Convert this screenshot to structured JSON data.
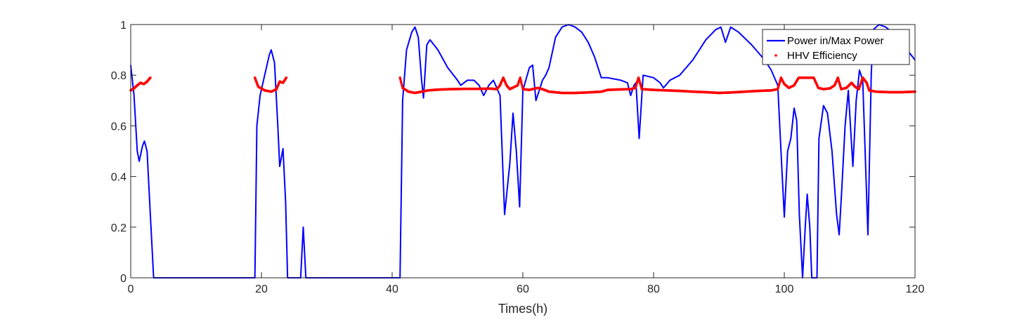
{
  "chart_data": {
    "type": "line",
    "title": "",
    "xlabel": "Times(h)",
    "ylabel": "",
    "xlim": [
      0,
      120
    ],
    "ylim": [
      0,
      1
    ],
    "xticks": [
      "0",
      "20",
      "40",
      "60",
      "80",
      "100",
      "120"
    ],
    "yticks": [
      "0",
      "0.2",
      "0.4",
      "0.6",
      "0.8",
      "1"
    ],
    "grid": false,
    "legend_position": "top-right",
    "series": [
      {
        "name": "Power in/Max Power",
        "style": "line",
        "color": "#0000ff",
        "points": [
          [
            0,
            0.84
          ],
          [
            0.5,
            0.72
          ],
          [
            1,
            0.5
          ],
          [
            1.3,
            0.46
          ],
          [
            1.8,
            0.52
          ],
          [
            2.1,
            0.54
          ],
          [
            2.5,
            0.5
          ],
          [
            3,
            0.25
          ],
          [
            3.5,
            0
          ],
          [
            19,
            0
          ],
          [
            19.3,
            0.6
          ],
          [
            19.8,
            0.72
          ],
          [
            20.5,
            0.8
          ],
          [
            21.2,
            0.88
          ],
          [
            21.5,
            0.9
          ],
          [
            22,
            0.85
          ],
          [
            22.5,
            0.6
          ],
          [
            22.8,
            0.44
          ],
          [
            23.3,
            0.51
          ],
          [
            23.7,
            0.3
          ],
          [
            24,
            0
          ],
          [
            26,
            0
          ],
          [
            26.4,
            0.2
          ],
          [
            26.8,
            0
          ],
          [
            41.2,
            0
          ],
          [
            41.6,
            0.7
          ],
          [
            42.2,
            0.9
          ],
          [
            43,
            0.97
          ],
          [
            43.5,
            0.99
          ],
          [
            44,
            0.95
          ],
          [
            44.5,
            0.78
          ],
          [
            44.8,
            0.71
          ],
          [
            45.3,
            0.92
          ],
          [
            45.8,
            0.94
          ],
          [
            47,
            0.9
          ],
          [
            48.5,
            0.83
          ],
          [
            50,
            0.78
          ],
          [
            50.5,
            0.76
          ],
          [
            51.5,
            0.78
          ],
          [
            52.5,
            0.78
          ],
          [
            53.3,
            0.76
          ],
          [
            54,
            0.72
          ],
          [
            54.8,
            0.76
          ],
          [
            55.5,
            0.78
          ],
          [
            56.5,
            0.72
          ],
          [
            57.2,
            0.25
          ],
          [
            58,
            0.45
          ],
          [
            58.5,
            0.65
          ],
          [
            59,
            0.5
          ],
          [
            59.5,
            0.28
          ],
          [
            60,
            0.74
          ],
          [
            61,
            0.83
          ],
          [
            61.5,
            0.84
          ],
          [
            62,
            0.7
          ],
          [
            62.5,
            0.74
          ],
          [
            63,
            0.78
          ],
          [
            63.5,
            0.8
          ],
          [
            64,
            0.83
          ],
          [
            65,
            0.95
          ],
          [
            66,
            0.99
          ],
          [
            67,
            1
          ],
          [
            68,
            0.99
          ],
          [
            69,
            0.97
          ],
          [
            70,
            0.93
          ],
          [
            71,
            0.87
          ],
          [
            72,
            0.79
          ],
          [
            73,
            0.79
          ],
          [
            75,
            0.78
          ],
          [
            76,
            0.77
          ],
          [
            76.5,
            0.72
          ],
          [
            77,
            0.76
          ],
          [
            77.3,
            0.77
          ],
          [
            77.8,
            0.55
          ],
          [
            78.4,
            0.8
          ],
          [
            80,
            0.79
          ],
          [
            81,
            0.77
          ],
          [
            81.5,
            0.75
          ],
          [
            82.5,
            0.78
          ],
          [
            84,
            0.8
          ],
          [
            86,
            0.86
          ],
          [
            88,
            0.94
          ],
          [
            89.5,
            0.98
          ],
          [
            90.3,
            0.99
          ],
          [
            91,
            0.93
          ],
          [
            91.8,
            0.99
          ],
          [
            93,
            0.97
          ],
          [
            95,
            0.92
          ],
          [
            97,
            0.86
          ],
          [
            98,
            0.82
          ],
          [
            99,
            0.76
          ],
          [
            99.5,
            0.5
          ],
          [
            100,
            0.24
          ],
          [
            100.5,
            0.5
          ],
          [
            101,
            0.55
          ],
          [
            101.5,
            0.67
          ],
          [
            101.9,
            0.62
          ],
          [
            102.3,
            0.25
          ],
          [
            102.8,
            0
          ],
          [
            103.2,
            0.2
          ],
          [
            103.5,
            0.33
          ],
          [
            103.9,
            0.2
          ],
          [
            104.2,
            0
          ],
          [
            105,
            0
          ],
          [
            105.3,
            0.55
          ],
          [
            106,
            0.68
          ],
          [
            106.6,
            0.65
          ],
          [
            107.3,
            0.5
          ],
          [
            108,
            0.25
          ],
          [
            108.4,
            0.17
          ],
          [
            108.8,
            0.35
          ],
          [
            109.3,
            0.6
          ],
          [
            109.8,
            0.74
          ],
          [
            110.5,
            0.44
          ],
          [
            111,
            0.7
          ],
          [
            111.5,
            0.82
          ],
          [
            112,
            0.78
          ],
          [
            112.3,
            0.55
          ],
          [
            112.8,
            0.17
          ],
          [
            113.3,
            0.8
          ],
          [
            113.6,
            0.98
          ],
          [
            114.5,
            1
          ],
          [
            115.5,
            0.99
          ],
          [
            117,
            0.96
          ],
          [
            118.5,
            0.91
          ],
          [
            120,
            0.86
          ]
        ]
      },
      {
        "name": "HHV Efficiency",
        "style": "marker",
        "color": "#ff0000",
        "points": [
          [
            0,
            0.74
          ],
          [
            0.5,
            0.748
          ],
          [
            1,
            0.76
          ],
          [
            1.5,
            0.77
          ],
          [
            2,
            0.765
          ],
          [
            2.5,
            0.775
          ],
          [
            3,
            0.79
          ],
          [
            19,
            0.79
          ],
          [
            19.5,
            0.755
          ],
          [
            20.5,
            0.74
          ],
          [
            21.5,
            0.735
          ],
          [
            22.3,
            0.745
          ],
          [
            22.8,
            0.775
          ],
          [
            23.3,
            0.77
          ],
          [
            23.8,
            0.79
          ],
          [
            41.2,
            0.79
          ],
          [
            41.6,
            0.75
          ],
          [
            42.5,
            0.735
          ],
          [
            43.5,
            0.73
          ],
          [
            44.5,
            0.735
          ],
          [
            45.5,
            0.74
          ],
          [
            47,
            0.743
          ],
          [
            49,
            0.745
          ],
          [
            51,
            0.746
          ],
          [
            53,
            0.746
          ],
          [
            55,
            0.747
          ],
          [
            56,
            0.745
          ],
          [
            56.5,
            0.76
          ],
          [
            57,
            0.79
          ],
          [
            57.5,
            0.76
          ],
          [
            58,
            0.745
          ],
          [
            59.2,
            0.76
          ],
          [
            59.6,
            0.79
          ],
          [
            60,
            0.745
          ],
          [
            61,
            0.742
          ],
          [
            62.3,
            0.75
          ],
          [
            63,
            0.745
          ],
          [
            64,
            0.735
          ],
          [
            66,
            0.73
          ],
          [
            68,
            0.73
          ],
          [
            70,
            0.732
          ],
          [
            72,
            0.735
          ],
          [
            73,
            0.742
          ],
          [
            75,
            0.744
          ],
          [
            76.5,
            0.745
          ],
          [
            77.2,
            0.75
          ],
          [
            77.7,
            0.79
          ],
          [
            78.2,
            0.745
          ],
          [
            80,
            0.742
          ],
          [
            82,
            0.74
          ],
          [
            84,
            0.738
          ],
          [
            86,
            0.735
          ],
          [
            88,
            0.733
          ],
          [
            90,
            0.73
          ],
          [
            92,
            0.732
          ],
          [
            94,
            0.735
          ],
          [
            96,
            0.738
          ],
          [
            98,
            0.74
          ],
          [
            99,
            0.745
          ],
          [
            99.5,
            0.79
          ],
          [
            100,
            0.765
          ],
          [
            100.7,
            0.75
          ],
          [
            101.5,
            0.76
          ],
          [
            102.2,
            0.79
          ],
          [
            103.6,
            0.79
          ],
          [
            104.5,
            0.79
          ],
          [
            105.2,
            0.75
          ],
          [
            106,
            0.745
          ],
          [
            107,
            0.748
          ],
          [
            107.7,
            0.76
          ],
          [
            108.2,
            0.79
          ],
          [
            108.7,
            0.745
          ],
          [
            109.5,
            0.75
          ],
          [
            110.3,
            0.77
          ],
          [
            110.8,
            0.755
          ],
          [
            111.4,
            0.745
          ],
          [
            112,
            0.79
          ],
          [
            112.6,
            0.77
          ],
          [
            113,
            0.74
          ],
          [
            114,
            0.735
          ],
          [
            116,
            0.733
          ],
          [
            118,
            0.733
          ],
          [
            120,
            0.735
          ]
        ]
      }
    ]
  }
}
